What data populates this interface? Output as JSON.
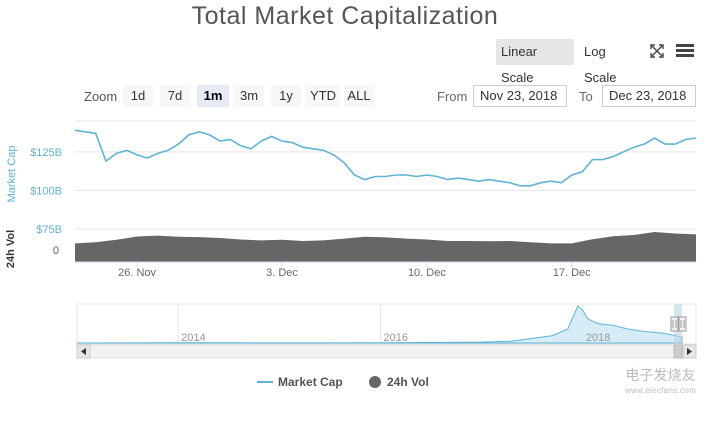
{
  "title": "Total Market Capitalization",
  "toolbar": {
    "linear_scale": "Linear Scale",
    "log_scale": "Log Scale",
    "fullscreen_icon": "fullscreen-icon",
    "menu_icon": "hamburger-menu-icon"
  },
  "zoom": {
    "label": "Zoom",
    "options": [
      "1d",
      "7d",
      "1m",
      "3m",
      "1y",
      "YTD",
      "ALL"
    ],
    "selected": "1m"
  },
  "range": {
    "from_label": "From",
    "from_value": "Nov 23, 2018",
    "to_label": "To",
    "to_value": "Dec 23, 2018"
  },
  "legend": {
    "market_cap": "Market Cap",
    "volume": "24h Vol"
  },
  "watermark": {
    "line1": "电子发烧友",
    "line2": "www.elecfans.com"
  },
  "colors": {
    "market_cap_line": "#5fb3d6",
    "volume_area": "#666666",
    "navigator_fill": "#d6ecf7",
    "navigator_mask": "#e6f3fa"
  },
  "chart_data": [
    {
      "type": "line",
      "title": "Total Market Capitalization",
      "ylabel": "Market Cap",
      "y_unit": "USD",
      "yticks": [
        "$75B",
        "$100B",
        "$125B"
      ],
      "ylim": [
        75,
        145
      ],
      "xticks": [
        "26. Nov",
        "3. Dec",
        "10. Dec",
        "17. Dec"
      ],
      "xlim": [
        "2018-11-23",
        "2018-12-23"
      ],
      "series": [
        {
          "name": "Market Cap",
          "x": [
            "2018-11-23",
            "2018-11-23T12",
            "2018-11-24",
            "2018-11-24T12",
            "2018-11-25",
            "2018-11-25T12",
            "2018-11-26",
            "2018-11-26T12",
            "2018-11-27",
            "2018-11-27T12",
            "2018-11-28",
            "2018-11-28T12",
            "2018-11-29",
            "2018-11-29T12",
            "2018-11-30",
            "2018-11-30T12",
            "2018-12-01",
            "2018-12-01T12",
            "2018-12-02",
            "2018-12-02T12",
            "2018-12-03",
            "2018-12-03T12",
            "2018-12-04",
            "2018-12-04T12",
            "2018-12-05",
            "2018-12-05T12",
            "2018-12-06",
            "2018-12-06T12",
            "2018-12-07",
            "2018-12-07T12",
            "2018-12-08",
            "2018-12-08T12",
            "2018-12-09",
            "2018-12-09T12",
            "2018-12-10",
            "2018-12-10T12",
            "2018-12-11",
            "2018-12-11T12",
            "2018-12-12",
            "2018-12-12T12",
            "2018-12-13",
            "2018-12-13T12",
            "2018-12-14",
            "2018-12-14T12",
            "2018-12-15",
            "2018-12-15T12",
            "2018-12-16",
            "2018-12-16T12",
            "2018-12-17",
            "2018-12-17T12",
            "2018-12-18",
            "2018-12-18T12",
            "2018-12-19",
            "2018-12-19T12",
            "2018-12-20",
            "2018-12-20T12",
            "2018-12-21",
            "2018-12-21T12",
            "2018-12-22",
            "2018-12-22T12",
            "2018-12-23"
          ],
          "y": [
            139,
            138,
            137,
            119,
            124,
            126,
            123,
            121,
            124,
            126,
            130,
            136,
            138,
            136,
            132,
            133,
            129,
            127,
            132,
            135,
            132,
            131,
            128,
            127,
            126,
            123,
            118,
            110,
            107,
            109,
            109,
            110,
            110,
            109,
            110,
            109,
            107,
            108,
            107,
            106,
            107,
            106,
            105,
            103,
            103,
            105,
            106,
            105,
            110,
            112,
            120,
            120,
            122,
            125,
            128,
            130,
            134,
            130,
            130,
            133,
            134
          ]
        },
        {
          "name": "24h Vol",
          "x": [
            "2018-11-23",
            "2018-11-24",
            "2018-11-25",
            "2018-11-26",
            "2018-11-27",
            "2018-11-28",
            "2018-11-29",
            "2018-11-30",
            "2018-12-01",
            "2018-12-02",
            "2018-12-03",
            "2018-12-04",
            "2018-12-05",
            "2018-12-06",
            "2018-12-07",
            "2018-12-08",
            "2018-12-09",
            "2018-12-10",
            "2018-12-11",
            "2018-12-12",
            "2018-12-13",
            "2018-12-14",
            "2018-12-15",
            "2018-12-16",
            "2018-12-17",
            "2018-12-18",
            "2018-12-19",
            "2018-12-20",
            "2018-12-21",
            "2018-12-22",
            "2018-12-23"
          ],
          "y": [
            0.62,
            0.66,
            0.74,
            0.85,
            0.88,
            0.84,
            0.83,
            0.8,
            0.75,
            0.72,
            0.74,
            0.7,
            0.72,
            0.78,
            0.84,
            0.82,
            0.78,
            0.75,
            0.7,
            0.7,
            0.69,
            0.7,
            0.66,
            0.62,
            0.62,
            0.76,
            0.86,
            0.9,
            1.0,
            0.95,
            0.92
          ]
        }
      ]
    },
    {
      "type": "area",
      "role": "navigator",
      "xticks": [
        "2014",
        "2016",
        "2018"
      ],
      "series": [
        {
          "name": "Market Cap",
          "x": [
            2013.0,
            2013.5,
            2014.0,
            2014.5,
            2015.0,
            2015.5,
            2016.0,
            2016.5,
            2017.0,
            2017.3,
            2017.5,
            2017.7,
            2017.85,
            2017.95,
            2018.0,
            2018.05,
            2018.15,
            2018.3,
            2018.45,
            2018.6,
            2018.8,
            2018.98
          ],
          "y": [
            1,
            3,
            5,
            4,
            3,
            3,
            7,
            10,
            20,
            40,
            100,
            160,
            300,
            800,
            700,
            520,
            420,
            380,
            300,
            250,
            210,
            130
          ]
        }
      ]
    }
  ]
}
